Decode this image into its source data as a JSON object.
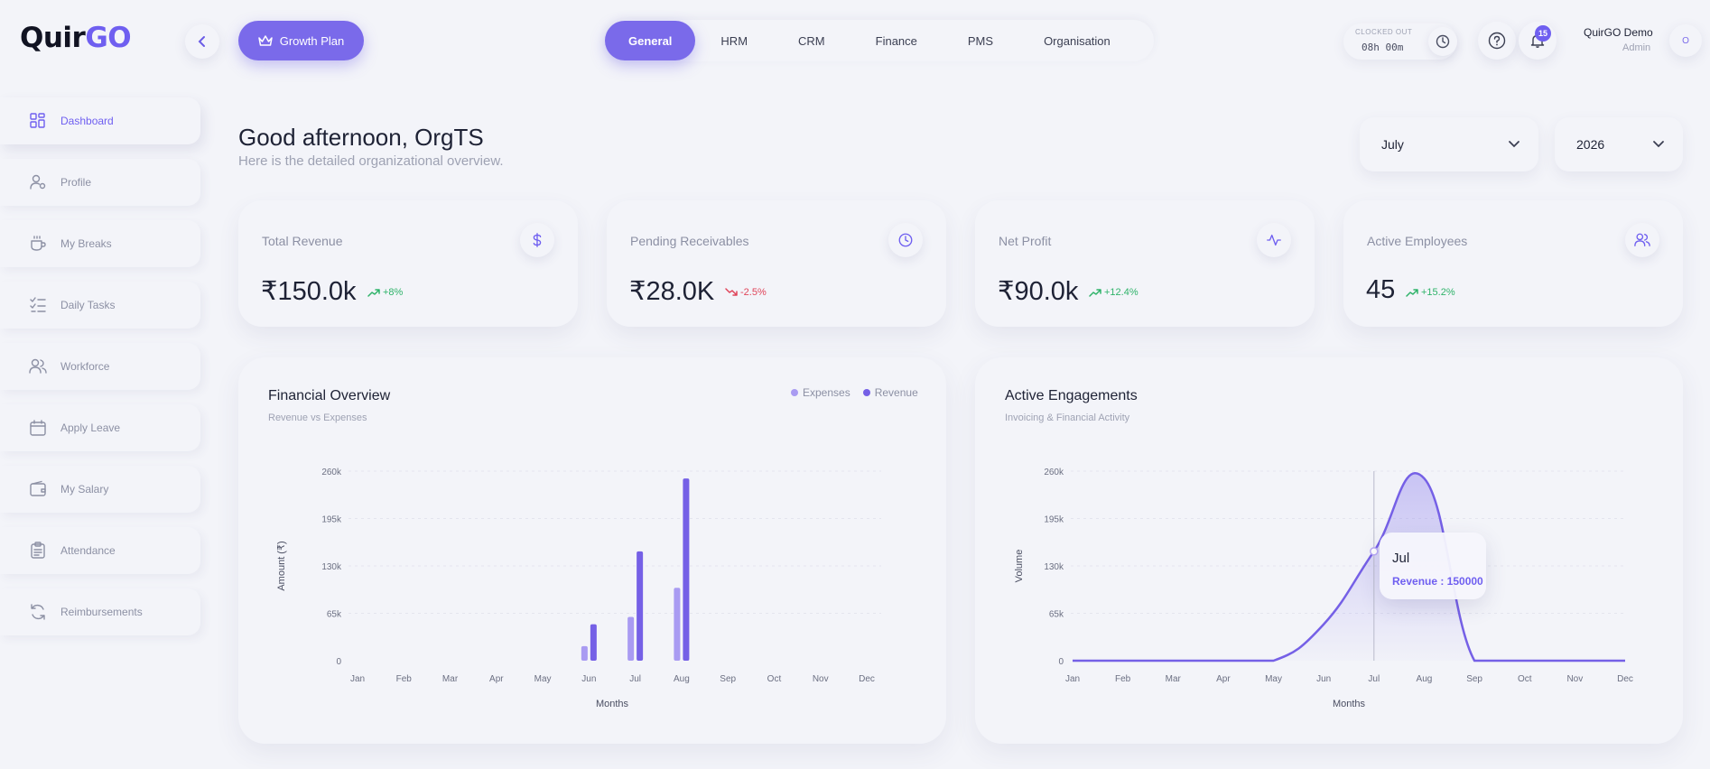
{
  "brand": {
    "logo_part1": "Quir",
    "logo_part2": "GO"
  },
  "header": {
    "growth_label": "Growth Plan",
    "tabs": [
      {
        "label": "General",
        "active": true
      },
      {
        "label": "HRM",
        "active": false
      },
      {
        "label": "CRM",
        "active": false
      },
      {
        "label": "Finance",
        "active": false
      },
      {
        "label": "PMS",
        "active": false
      },
      {
        "label": "Organisation",
        "active": false
      }
    ],
    "clock_status": "CLOCKED OUT",
    "clock_time": "08h 00m",
    "notification_count": "15",
    "user_name": "QuirGO Demo",
    "user_role": "Admin",
    "user_avatar": "O"
  },
  "sidebar": {
    "items": [
      {
        "label": "Dashboard",
        "icon": "dashboard-icon",
        "active": true
      },
      {
        "label": "Profile",
        "icon": "profile-icon",
        "active": false
      },
      {
        "label": "My Breaks",
        "icon": "coffee-icon",
        "active": false
      },
      {
        "label": "Daily Tasks",
        "icon": "checklist-icon",
        "active": false
      },
      {
        "label": "Workforce",
        "icon": "users-icon",
        "active": false
      },
      {
        "label": "Apply Leave",
        "icon": "calendar-icon",
        "active": false
      },
      {
        "label": "My Salary",
        "icon": "wallet-icon",
        "active": false
      },
      {
        "label": "Attendance",
        "icon": "clipboard-icon",
        "active": false
      },
      {
        "label": "Reimbursements",
        "icon": "refresh-icon",
        "active": false
      }
    ]
  },
  "main": {
    "greeting": "Good afternoon,  OrgTS",
    "subtitle": "Here is the detailed organizational overview.",
    "month_select": "July",
    "year_select": "2026",
    "stats": [
      {
        "label": "Total Revenue",
        "value": "₹150.0k",
        "trend": "+8%",
        "dir": "up",
        "icon": "dollar-icon"
      },
      {
        "label": "Pending Receivables",
        "value": "₹28.0K",
        "trend": "-2.5%",
        "dir": "down",
        "icon": "clock-icon"
      },
      {
        "label": "Net Profit",
        "value": "₹90.0k",
        "trend": "+12.4%",
        "dir": "up",
        "icon": "activity-icon"
      },
      {
        "label": "Active Employees",
        "value": "45",
        "trend": "+15.2%",
        "dir": "up",
        "icon": "users-icon"
      }
    ]
  },
  "colors": {
    "accent": "#7a6aea",
    "expenses": "#a99bf2",
    "revenue": "#7560e6",
    "up": "#2fb36a",
    "down": "#e0455a"
  },
  "chart_data": [
    {
      "type": "bar",
      "title": "Financial Overview",
      "subtitle": "Revenue vs Expenses",
      "xlabel": "Months",
      "ylabel": "Amount (₹)",
      "categories": [
        "Jan",
        "Feb",
        "Mar",
        "Apr",
        "May",
        "Jun",
        "Jul",
        "Aug",
        "Sep",
        "Oct",
        "Nov",
        "Dec"
      ],
      "ylim": [
        0,
        260000
      ],
      "yticks": [
        0,
        65000,
        130000,
        195000,
        260000
      ],
      "ytick_labels": [
        "0",
        "65k",
        "130k",
        "195k",
        "260k"
      ],
      "legend_position": "top-right",
      "series": [
        {
          "name": "Expenses",
          "values": [
            0,
            0,
            0,
            0,
            0,
            20000,
            60000,
            100000,
            0,
            0,
            0,
            0
          ]
        },
        {
          "name": "Revenue",
          "values": [
            0,
            0,
            0,
            0,
            0,
            50000,
            150000,
            250000,
            0,
            0,
            0,
            0
          ]
        }
      ]
    },
    {
      "type": "area",
      "title": "Active Engagements",
      "subtitle": "Invoicing & Financial Activity",
      "xlabel": "Months",
      "ylabel": "Volume",
      "categories": [
        "Jan",
        "Feb",
        "Mar",
        "Apr",
        "May",
        "Jun",
        "Jul",
        "Aug",
        "Sep",
        "Oct",
        "Nov",
        "Dec"
      ],
      "ylim": [
        0,
        260000
      ],
      "yticks": [
        0,
        65000,
        130000,
        195000,
        260000
      ],
      "ytick_labels": [
        "0",
        "65k",
        "130k",
        "195k",
        "260k"
      ],
      "series": [
        {
          "name": "Revenue",
          "values": [
            0,
            0,
            0,
            0,
            0,
            50000,
            150000,
            250000,
            0,
            0,
            0,
            0
          ]
        }
      ],
      "tooltip": {
        "month": "Jul",
        "text": "Revenue : 150000"
      }
    }
  ]
}
